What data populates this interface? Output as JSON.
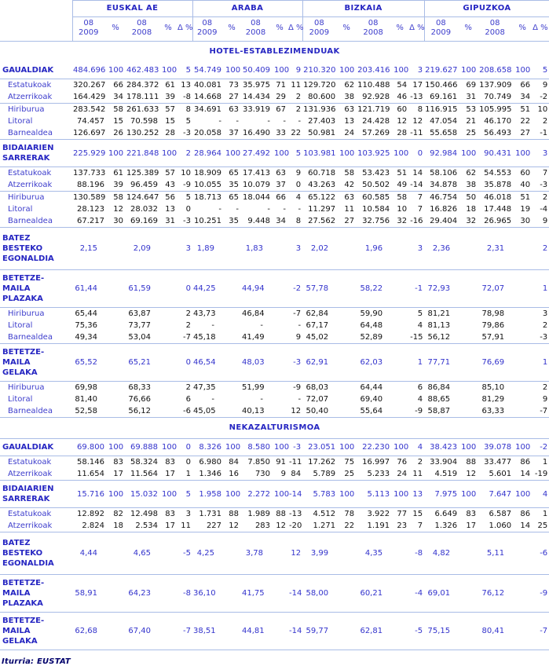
{
  "colors": {
    "rule_blue": "#a9bce6",
    "bold_blue": "#2626c2",
    "sub_label_blue": "#3d3dcc",
    "value_blue": "#3333cc",
    "value_black": "#101010",
    "footer_navy": "#00006b"
  },
  "header": {
    "groups": [
      "EUSKAL AE",
      "ARABA",
      "BIZKAIA",
      "GIPUZKOA"
    ],
    "subcols": [
      [
        "08",
        "2009"
      ],
      [
        "%"
      ],
      [
        "08",
        "2008"
      ],
      [
        "%"
      ],
      [
        "Δ %"
      ]
    ]
  },
  "sections": [
    {
      "title": "HOTEL-ESTABLEZIMENDUAK",
      "rows": [
        {
          "label": "GAUALDIAK",
          "b": 1,
          "bb": 1,
          "cells": [
            "484.696",
            "100",
            "462.483",
            "100",
            "5",
            "54.749",
            "100",
            "50.409",
            "100",
            "9",
            "210.320",
            "100",
            "203.416",
            "100",
            "3",
            "219.627",
            "100",
            "208.658",
            "100",
            "5"
          ]
        },
        {
          "label": "Estatukoak",
          "cells": [
            "320.267",
            "66",
            "284.372",
            "61",
            "13",
            "40.081",
            "73",
            "35.975",
            "71",
            "11",
            "129.720",
            "62",
            "110.488",
            "54",
            "17",
            "150.466",
            "69",
            "137.909",
            "66",
            "9"
          ]
        },
        {
          "label": "Atzerrikoak",
          "bb": 1,
          "cells": [
            "164.429",
            "34",
            "178.111",
            "39",
            "-8",
            "14.668",
            "27",
            "14.434",
            "29",
            "2",
            "80.600",
            "38",
            "92.928",
            "46",
            "-13",
            "69.161",
            "31",
            "70.749",
            "34",
            "-2"
          ]
        },
        {
          "label": "Hiriburua",
          "cells": [
            "283.542",
            "58",
            "261.633",
            "57",
            "8",
            "34.691",
            "63",
            "33.919",
            "67",
            "2",
            "131.936",
            "63",
            "121.719",
            "60",
            "8",
            "116.915",
            "53",
            "105.995",
            "51",
            "10"
          ]
        },
        {
          "label": "Litoral",
          "cells": [
            "74.457",
            "15",
            "70.598",
            "15",
            "5",
            "-",
            "-",
            "-",
            "-",
            "-",
            "27.403",
            "13",
            "24.428",
            "12",
            "12",
            "47.054",
            "21",
            "46.170",
            "22",
            "2"
          ]
        },
        {
          "label": "Barnealdea",
          "bb": 1,
          "cells": [
            "126.697",
            "26",
            "130.252",
            "28",
            "-3",
            "20.058",
            "37",
            "16.490",
            "33",
            "22",
            "50.981",
            "24",
            "57.269",
            "28",
            "-11",
            "55.658",
            "25",
            "56.493",
            "27",
            "-1"
          ]
        },
        {
          "label": "BIDAIARIEN\nSARRERAK",
          "b": 1,
          "bb": 1,
          "cells": [
            "225.929",
            "100",
            "221.848",
            "100",
            "2",
            "28.964",
            "100",
            "27.492",
            "100",
            "5",
            "103.981",
            "100",
            "103.925",
            "100",
            "0",
            "92.984",
            "100",
            "90.431",
            "100",
            "3"
          ]
        },
        {
          "label": "Estatukoak",
          "cells": [
            "137.733",
            "61",
            "125.389",
            "57",
            "10",
            "18.909",
            "65",
            "17.413",
            "63",
            "9",
            "60.718",
            "58",
            "53.423",
            "51",
            "14",
            "58.106",
            "62",
            "54.553",
            "60",
            "7"
          ]
        },
        {
          "label": "Atzerrikoak",
          "bb": 1,
          "cells": [
            "88.196",
            "39",
            "96.459",
            "43",
            "-9",
            "10.055",
            "35",
            "10.079",
            "37",
            "0",
            "43.263",
            "42",
            "50.502",
            "49",
            "-14",
            "34.878",
            "38",
            "35.878",
            "40",
            "-3"
          ]
        },
        {
          "label": "Hiriburua",
          "cells": [
            "130.589",
            "58",
            "124.647",
            "56",
            "5",
            "18.713",
            "65",
            "18.044",
            "66",
            "4",
            "65.122",
            "63",
            "60.585",
            "58",
            "7",
            "46.754",
            "50",
            "46.018",
            "51",
            "2"
          ]
        },
        {
          "label": "Litoral",
          "cells": [
            "28.123",
            "12",
            "28.032",
            "13",
            "0",
            "-",
            "-",
            "-",
            "-",
            "-",
            "11.297",
            "11",
            "10.584",
            "10",
            "7",
            "16.826",
            "18",
            "17.448",
            "19",
            "-4"
          ]
        },
        {
          "label": "Barnealdea",
          "bb": 1,
          "cells": [
            "67.217",
            "30",
            "69.169",
            "31",
            "-3",
            "10.251",
            "35",
            "9.448",
            "34",
            "8",
            "27.562",
            "27",
            "32.756",
            "32",
            "-16",
            "29.404",
            "32",
            "26.965",
            "30",
            "9"
          ]
        },
        {
          "label": "BATEZ BESTEKO\nEGONALDIA",
          "b": 1,
          "dec": 1,
          "tall": 1,
          "bb": 1,
          "cells": [
            "2,15",
            "",
            "2,09",
            "",
            "3",
            "1,89",
            "",
            "1,83",
            "",
            "3",
            "2,02",
            "",
            "1,96",
            "",
            "3",
            "2,36",
            "",
            "2,31",
            "",
            "2"
          ]
        },
        {
          "label": "BETETZE-MAILA\nPLAZAKA",
          "b": 1,
          "dec": 1,
          "bb": 1,
          "cells": [
            "61,44",
            "",
            "61,59",
            "",
            "0",
            "44,25",
            "",
            "44,94",
            "",
            "-2",
            "57,78",
            "",
            "58,22",
            "",
            "-1",
            "72,93",
            "",
            "72,07",
            "",
            "1"
          ]
        },
        {
          "label": "Hiriburua",
          "dec": 1,
          "cells": [
            "65,44",
            "",
            "63,87",
            "",
            "2",
            "43,73",
            "",
            "46,84",
            "",
            "-7",
            "62,84",
            "",
            "59,90",
            "",
            "5",
            "81,21",
            "",
            "78,98",
            "",
            "3"
          ]
        },
        {
          "label": "Litoral",
          "dec": 1,
          "cells": [
            "75,36",
            "",
            "73,77",
            "",
            "2",
            "-",
            "",
            "-",
            "",
            "-",
            "67,17",
            "",
            "64,48",
            "",
            "4",
            "81,13",
            "",
            "79,86",
            "",
            "2"
          ]
        },
        {
          "label": "Barnealdea",
          "dec": 1,
          "bb": 1,
          "cells": [
            "49,34",
            "",
            "53,04",
            "",
            "-7",
            "45,18",
            "",
            "41,49",
            "",
            "9",
            "45,02",
            "",
            "52,89",
            "",
            "-15",
            "56,12",
            "",
            "57,91",
            "",
            "-3"
          ]
        },
        {
          "label": "BETETZE-MAILA\nGELAKA",
          "b": 1,
          "dec": 1,
          "bb": 1,
          "cells": [
            "65,52",
            "",
            "65,21",
            "",
            "0",
            "46,54",
            "",
            "48,03",
            "",
            "-3",
            "62,91",
            "",
            "62,03",
            "",
            "1",
            "77,71",
            "",
            "76,69",
            "",
            "1"
          ]
        },
        {
          "label": "Hiriburua",
          "dec": 1,
          "cells": [
            "69,98",
            "",
            "68,33",
            "",
            "2",
            "47,35",
            "",
            "51,99",
            "",
            "-9",
            "68,03",
            "",
            "64,44",
            "",
            "6",
            "86,84",
            "",
            "85,10",
            "",
            "2"
          ]
        },
        {
          "label": "Litoral",
          "dec": 1,
          "cells": [
            "81,40",
            "",
            "76,66",
            "",
            "6",
            "-",
            "",
            "-",
            "",
            "-",
            "72,07",
            "",
            "69,40",
            "",
            "4",
            "88,65",
            "",
            "81,29",
            "",
            "9"
          ]
        },
        {
          "label": "Barnealdea",
          "dec": 1,
          "bb": 1,
          "cells": [
            "52,58",
            "",
            "56,12",
            "",
            "-6",
            "45,05",
            "",
            "40,13",
            "",
            "12",
            "50,40",
            "",
            "55,64",
            "",
            "-9",
            "58,87",
            "",
            "63,33",
            "",
            "-7"
          ]
        }
      ]
    },
    {
      "title": "NEKAZALTURISMOA",
      "rows": [
        {
          "label": "GAUALDIAK",
          "b": 1,
          "bt": 1,
          "bb": 1,
          "cells": [
            "69.800",
            "100",
            "69.888",
            "100",
            "0",
            "8.326",
            "100",
            "8.580",
            "100",
            "-3",
            "23.051",
            "100",
            "22.230",
            "100",
            "4",
            "38.423",
            "100",
            "39.078",
            "100",
            "-2"
          ]
        },
        {
          "label": "Estatukoak",
          "cells": [
            "58.146",
            "83",
            "58.324",
            "83",
            "0",
            "6.980",
            "84",
            "7.850",
            "91",
            "-11",
            "17.262",
            "75",
            "16.997",
            "76",
            "2",
            "33.904",
            "88",
            "33.477",
            "86",
            "1"
          ]
        },
        {
          "label": "Atzerrikoak",
          "bb": 1,
          "cells": [
            "11.654",
            "17",
            "11.564",
            "17",
            "1",
            "1.346",
            "16",
            "730",
            "9",
            "84",
            "5.789",
            "25",
            "5.233",
            "24",
            "11",
            "4.519",
            "12",
            "5.601",
            "14",
            "-19"
          ]
        },
        {
          "label": "BIDAIARIEN\nSARRERAK",
          "b": 1,
          "bb": 1,
          "cells": [
            "15.716",
            "100",
            "15.032",
            "100",
            "5",
            "1.958",
            "100",
            "2.272",
            "100",
            "-14",
            "5.783",
            "100",
            "5.113",
            "100",
            "13",
            "7.975",
            "100",
            "7.647",
            "100",
            "4"
          ]
        },
        {
          "label": "Estatukoak",
          "cells": [
            "12.892",
            "82",
            "12.498",
            "83",
            "3",
            "1.731",
            "88",
            "1.989",
            "88",
            "-13",
            "4.512",
            "78",
            "3.922",
            "77",
            "15",
            "6.649",
            "83",
            "6.587",
            "86",
            "1"
          ]
        },
        {
          "label": "Atzerrikoak",
          "bb": 1,
          "cells": [
            "2.824",
            "18",
            "2.534",
            "17",
            "11",
            "227",
            "12",
            "283",
            "12",
            "-20",
            "1.271",
            "22",
            "1.191",
            "23",
            "7",
            "1.326",
            "17",
            "1.060",
            "14",
            "25"
          ]
        },
        {
          "label": "BATEZ BESTEKO\nEGONALDIA",
          "b": 1,
          "dec": 1,
          "tall": 1,
          "bb": 1,
          "cells": [
            "4,44",
            "",
            "4,65",
            "",
            "-5",
            "4,25",
            "",
            "3,78",
            "",
            "12",
            "3,99",
            "",
            "4,35",
            "",
            "-8",
            "4,82",
            "",
            "5,11",
            "",
            "-6"
          ]
        },
        {
          "label": "BETETZE-MAILA\nPLAZAKA",
          "b": 1,
          "dec": 1,
          "bb": 1,
          "cells": [
            "58,91",
            "",
            "64,23",
            "",
            "-8",
            "36,10",
            "",
            "41,75",
            "",
            "-14",
            "58,00",
            "",
            "60,21",
            "",
            "-4",
            "69,01",
            "",
            "76,12",
            "",
            "-9"
          ]
        },
        {
          "label": "BETETZE-MAILA\nGELAKA",
          "b": 1,
          "dec": 1,
          "bb": 1,
          "cells": [
            "62,68",
            "",
            "67,40",
            "",
            "-7",
            "38,51",
            "",
            "44,81",
            "",
            "-14",
            "59,77",
            "",
            "62,81",
            "",
            "-5",
            "75,15",
            "",
            "80,41",
            "",
            "-7"
          ]
        }
      ]
    }
  ],
  "footer": {
    "text": "Iturria: EUSTAT"
  }
}
